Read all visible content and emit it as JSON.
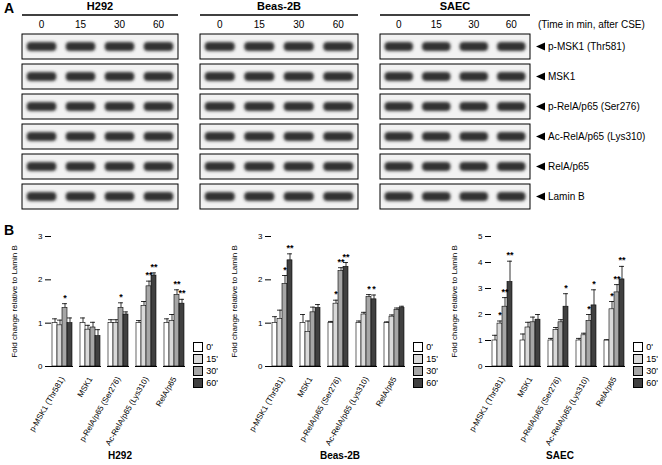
{
  "panel_labels": [
    "A",
    "B"
  ],
  "blot": {
    "cell_lines": [
      "H292",
      "Beas-2B",
      "SAEC"
    ],
    "time_points": [
      "0",
      "15",
      "30",
      "60"
    ],
    "time_caption": "(Time in min, after CSE)",
    "rows": [
      "p-MSK1 (Thr581)",
      "MSK1",
      "p-RelA/p65 (Ser276)",
      "Ac-RelA/p65 (Lys310)",
      "RelA/p65",
      "Lamin B"
    ]
  },
  "chart_data": [
    {
      "type": "bar",
      "xlabel": "H292",
      "ylabel": "Fold change relative to Lamin B",
      "categories": [
        "p-MSK1 (Thr581)",
        "MSK1",
        "p-RelA/p65 (Ser276)",
        "Ac-RelA/p65 (Lys310)",
        "RelA/p65"
      ],
      "series": [
        {
          "name": "0'",
          "color": "#ffffff",
          "values": [
            1.0,
            1.0,
            1.0,
            1.0,
            1.0
          ],
          "errors": [
            0.1,
            0.12,
            0.08,
            0.06,
            0.1
          ]
        },
        {
          "name": "15'",
          "color": "#d9d9d9",
          "values": [
            0.95,
            0.85,
            1.0,
            1.4,
            1.05
          ],
          "errors": [
            0.12,
            0.1,
            0.08,
            0.1,
            0.15
          ]
        },
        {
          "name": "30'",
          "color": "#a6a6a6",
          "values": [
            1.35,
            0.9,
            1.35,
            1.85,
            1.65
          ],
          "errors": [
            0.1,
            0.12,
            0.12,
            0.12,
            0.12
          ]
        },
        {
          "name": "60'",
          "color": "#404040",
          "values": [
            1.0,
            0.7,
            1.2,
            2.1,
            1.45
          ],
          "errors": [
            0.12,
            0.15,
            0.06,
            0.06,
            0.1
          ]
        }
      ],
      "annotations": [
        {
          "category": "p-MSK1 (Thr581)",
          "series": "30'",
          "label": "*"
        },
        {
          "category": "p-RelA/p65 (Ser276)",
          "series": "30'",
          "label": "*"
        },
        {
          "category": "Ac-RelA/p65 (Lys310)",
          "series": "30'",
          "label": "**"
        },
        {
          "category": "Ac-RelA/p65 (Lys310)",
          "series": "60'",
          "label": "**"
        },
        {
          "category": "RelA/p65",
          "series": "30'",
          "label": "**"
        },
        {
          "category": "RelA/p65",
          "series": "60'",
          "label": "**"
        }
      ],
      "ylim": [
        0,
        3
      ],
      "yticks": [
        0,
        1,
        2,
        3
      ],
      "legend": "right"
    },
    {
      "type": "bar",
      "xlabel": "Beas-2B",
      "ylabel": "Fold change relative to Lamin B",
      "categories": [
        "p-MSK1 (Thr581)",
        "MSK1",
        "p-RelA/p65 (Ser276)",
        "Ac-RelA/p65 (Lys310)",
        "RelA/p65"
      ],
      "series": [
        {
          "name": "0'",
          "color": "#ffffff",
          "values": [
            1.0,
            1.0,
            1.0,
            1.0,
            1.0
          ],
          "errors": [
            0.15,
            0.2,
            0.04,
            0.05,
            0.03
          ]
        },
        {
          "name": "15'",
          "color": "#d9d9d9",
          "values": [
            1.1,
            0.8,
            1.45,
            1.2,
            1.15
          ],
          "errors": [
            0.2,
            0.25,
            0.08,
            0.05,
            0.04
          ]
        },
        {
          "name": "30'",
          "color": "#a6a6a6",
          "values": [
            1.9,
            1.25,
            2.2,
            1.6,
            1.3
          ],
          "errors": [
            0.2,
            0.12,
            0.08,
            0.06,
            0.05
          ]
        },
        {
          "name": "60'",
          "color": "#404040",
          "values": [
            2.45,
            1.35,
            2.3,
            1.55,
            1.35
          ],
          "errors": [
            0.15,
            0.08,
            0.1,
            0.1,
            0.04
          ]
        }
      ],
      "annotations": [
        {
          "category": "p-MSK1 (Thr581)",
          "series": "30'",
          "label": "*"
        },
        {
          "category": "p-MSK1 (Thr581)",
          "series": "60'",
          "label": "**"
        },
        {
          "category": "p-RelA/p65 (Ser276)",
          "series": "15'",
          "label": "*"
        },
        {
          "category": "p-RelA/p65 (Ser276)",
          "series": "30'",
          "label": "**"
        },
        {
          "category": "p-RelA/p65 (Ser276)",
          "series": "60'",
          "label": "**"
        },
        {
          "category": "Ac-RelA/p65 (Lys310)",
          "series": "30'",
          "label": "*"
        },
        {
          "category": "Ac-RelA/p65 (Lys310)",
          "series": "60'",
          "label": "*"
        }
      ],
      "ylim": [
        0,
        3
      ],
      "yticks": [
        0,
        1,
        2,
        3
      ],
      "legend": "right"
    },
    {
      "type": "bar",
      "xlabel": "SAEC",
      "ylabel": "Fold change relative to Lamin B",
      "categories": [
        "p-MSK1 (Thr581)",
        "MSK1",
        "p-RelA/p65 (Ser276)",
        "Ac-RelA/p65 (Lys310)",
        "RelA/p65"
      ],
      "series": [
        {
          "name": "0'",
          "color": "#ffffff",
          "values": [
            1.0,
            1.0,
            1.0,
            1.0,
            1.0
          ],
          "errors": [
            0.2,
            0.25,
            0.08,
            0.08,
            0.03
          ]
        },
        {
          "name": "15'",
          "color": "#d9d9d9",
          "values": [
            1.65,
            1.5,
            1.4,
            1.2,
            2.2
          ],
          "errors": [
            0.1,
            0.2,
            0.1,
            0.08,
            0.3
          ]
        },
        {
          "name": "30'",
          "color": "#a6a6a6",
          "values": [
            2.3,
            1.7,
            1.7,
            1.75,
            2.85
          ],
          "errors": [
            0.35,
            0.2,
            0.1,
            0.25,
            0.3
          ]
        },
        {
          "name": "60'",
          "color": "#404040",
          "values": [
            3.25,
            1.8,
            2.3,
            2.35,
            3.35
          ],
          "errors": [
            0.8,
            0.2,
            0.5,
            0.6,
            0.5
          ]
        }
      ],
      "annotations": [
        {
          "category": "p-MSK1 (Thr581)",
          "series": "15'",
          "label": "*"
        },
        {
          "category": "p-MSK1 (Thr581)",
          "series": "30'",
          "label": "**"
        },
        {
          "category": "p-MSK1 (Thr581)",
          "series": "60'",
          "label": "**"
        },
        {
          "category": "p-RelA/p65 (Ser276)",
          "series": "60'",
          "label": "*"
        },
        {
          "category": "Ac-RelA/p65 (Lys310)",
          "series": "30'",
          "label": "*"
        },
        {
          "category": "Ac-RelA/p65 (Lys310)",
          "series": "60'",
          "label": "*"
        },
        {
          "category": "RelA/p65",
          "series": "15'",
          "label": "*"
        },
        {
          "category": "RelA/p65",
          "series": "30'",
          "label": "**"
        },
        {
          "category": "RelA/p65",
          "series": "60'",
          "label": "**"
        }
      ],
      "ylim": [
        0,
        5
      ],
      "yticks": [
        0,
        1,
        2,
        3,
        4,
        5
      ],
      "legend": "right"
    }
  ]
}
